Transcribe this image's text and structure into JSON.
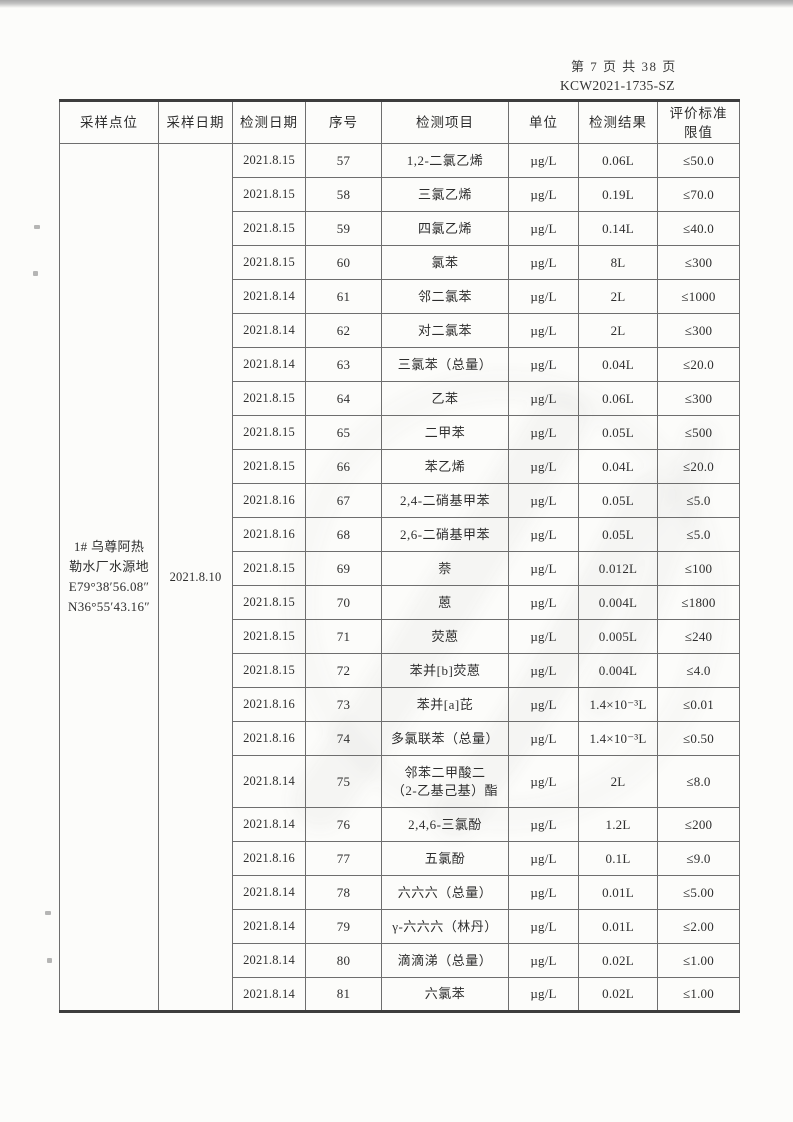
{
  "page_header": {
    "page_info": "第 7 页 共 38 页",
    "report_no": "KCW2021-1735-SZ"
  },
  "table": {
    "headers": [
      "采样点位",
      "采样日期",
      "检测日期",
      "序号",
      "检测项目",
      "单位",
      "检测结果",
      "评价标准\n限值"
    ],
    "sampling_point_lines": [
      "1# 乌尊阿热",
      "勒水厂水源地",
      "E79°38′56.08″",
      "N36°55′43.16″"
    ],
    "sampling_date": "2021.8.10",
    "rows": [
      {
        "test_date": "2021.8.15",
        "no": "57",
        "item": "1,2-二氯乙烯",
        "unit": "µg/L",
        "result": "0.06L",
        "limit": "≤50.0"
      },
      {
        "test_date": "2021.8.15",
        "no": "58",
        "item": "三氯乙烯",
        "unit": "µg/L",
        "result": "0.19L",
        "limit": "≤70.0"
      },
      {
        "test_date": "2021.8.15",
        "no": "59",
        "item": "四氯乙烯",
        "unit": "µg/L",
        "result": "0.14L",
        "limit": "≤40.0"
      },
      {
        "test_date": "2021.8.15",
        "no": "60",
        "item": "氯苯",
        "unit": "µg/L",
        "result": "8L",
        "limit": "≤300"
      },
      {
        "test_date": "2021.8.14",
        "no": "61",
        "item": "邻二氯苯",
        "unit": "µg/L",
        "result": "2L",
        "limit": "≤1000"
      },
      {
        "test_date": "2021.8.14",
        "no": "62",
        "item": "对二氯苯",
        "unit": "µg/L",
        "result": "2L",
        "limit": "≤300"
      },
      {
        "test_date": "2021.8.14",
        "no": "63",
        "item": "三氯苯（总量）",
        "unit": "µg/L",
        "result": "0.04L",
        "limit": "≤20.0"
      },
      {
        "test_date": "2021.8.15",
        "no": "64",
        "item": "乙苯",
        "unit": "µg/L",
        "result": "0.06L",
        "limit": "≤300"
      },
      {
        "test_date": "2021.8.15",
        "no": "65",
        "item": "二甲苯",
        "unit": "µg/L",
        "result": "0.05L",
        "limit": "≤500"
      },
      {
        "test_date": "2021.8.15",
        "no": "66",
        "item": "苯乙烯",
        "unit": "µg/L",
        "result": "0.04L",
        "limit": "≤20.0"
      },
      {
        "test_date": "2021.8.16",
        "no": "67",
        "item": "2,4-二硝基甲苯",
        "unit": "µg/L",
        "result": "0.05L",
        "limit": "≤5.0"
      },
      {
        "test_date": "2021.8.16",
        "no": "68",
        "item": "2,6-二硝基甲苯",
        "unit": "µg/L",
        "result": "0.05L",
        "limit": "≤5.0"
      },
      {
        "test_date": "2021.8.15",
        "no": "69",
        "item": "萘",
        "unit": "µg/L",
        "result": "0.012L",
        "limit": "≤100"
      },
      {
        "test_date": "2021.8.15",
        "no": "70",
        "item": "蒽",
        "unit": "µg/L",
        "result": "0.004L",
        "limit": "≤1800"
      },
      {
        "test_date": "2021.8.15",
        "no": "71",
        "item": "荧蒽",
        "unit": "µg/L",
        "result": "0.005L",
        "limit": "≤240"
      },
      {
        "test_date": "2021.8.15",
        "no": "72",
        "item": "苯并[b]荧蒽",
        "unit": "µg/L",
        "result": "0.004L",
        "limit": "≤4.0"
      },
      {
        "test_date": "2021.8.16",
        "no": "73",
        "item": "苯并[a]芘",
        "unit": "µg/L",
        "result": "1.4×10⁻³L",
        "limit": "≤0.01"
      },
      {
        "test_date": "2021.8.16",
        "no": "74",
        "item": "多氯联苯（总量）",
        "unit": "µg/L",
        "result": "1.4×10⁻³L",
        "limit": "≤0.50"
      },
      {
        "test_date": "2021.8.14",
        "no": "75",
        "item": "邻苯二甲酸二\n（2-乙基己基）酯",
        "unit": "µg/L",
        "result": "2L",
        "limit": "≤8.0"
      },
      {
        "test_date": "2021.8.14",
        "no": "76",
        "item": "2,4,6-三氯酚",
        "unit": "µg/L",
        "result": "1.2L",
        "limit": "≤200"
      },
      {
        "test_date": "2021.8.16",
        "no": "77",
        "item": "五氯酚",
        "unit": "µg/L",
        "result": "0.1L",
        "limit": "≤9.0"
      },
      {
        "test_date": "2021.8.14",
        "no": "78",
        "item": "六六六（总量）",
        "unit": "µg/L",
        "result": "0.01L",
        "limit": "≤5.00"
      },
      {
        "test_date": "2021.8.14",
        "no": "79",
        "item": "γ-六六六（林丹）",
        "unit": "µg/L",
        "result": "0.01L",
        "limit": "≤2.00"
      },
      {
        "test_date": "2021.8.14",
        "no": "80",
        "item": "滴滴涕（总量）",
        "unit": "µg/L",
        "result": "0.02L",
        "limit": "≤1.00"
      },
      {
        "test_date": "2021.8.14",
        "no": "81",
        "item": "六氯苯",
        "unit": "µg/L",
        "result": "0.02L",
        "limit": "≤1.00"
      }
    ]
  }
}
